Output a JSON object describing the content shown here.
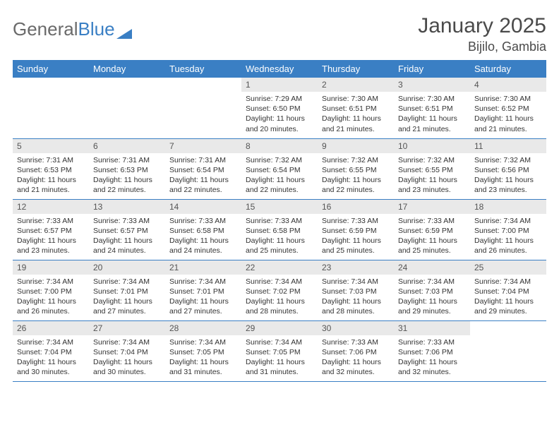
{
  "brand": {
    "part1": "General",
    "part2": "Blue"
  },
  "title": "January 2025",
  "location": "Bijilo, Gambia",
  "colors": {
    "header_bg": "#3a7fc4",
    "header_text": "#ffffff",
    "daynum_bg": "#e9e9e9",
    "text": "#333333",
    "rule": "#3a7fc4",
    "brand_gray": "#6a6a6a",
    "brand_blue": "#3a7fc4"
  },
  "dayNames": [
    "Sunday",
    "Monday",
    "Tuesday",
    "Wednesday",
    "Thursday",
    "Friday",
    "Saturday"
  ],
  "startWeekday": 3,
  "daysInMonth": 31,
  "days": {
    "1": {
      "sunrise": "7:29 AM",
      "sunset": "6:50 PM",
      "hrs": 11,
      "mins": 20
    },
    "2": {
      "sunrise": "7:30 AM",
      "sunset": "6:51 PM",
      "hrs": 11,
      "mins": 21
    },
    "3": {
      "sunrise": "7:30 AM",
      "sunset": "6:51 PM",
      "hrs": 11,
      "mins": 21
    },
    "4": {
      "sunrise": "7:30 AM",
      "sunset": "6:52 PM",
      "hrs": 11,
      "mins": 21
    },
    "5": {
      "sunrise": "7:31 AM",
      "sunset": "6:53 PM",
      "hrs": 11,
      "mins": 21
    },
    "6": {
      "sunrise": "7:31 AM",
      "sunset": "6:53 PM",
      "hrs": 11,
      "mins": 22
    },
    "7": {
      "sunrise": "7:31 AM",
      "sunset": "6:54 PM",
      "hrs": 11,
      "mins": 22
    },
    "8": {
      "sunrise": "7:32 AM",
      "sunset": "6:54 PM",
      "hrs": 11,
      "mins": 22
    },
    "9": {
      "sunrise": "7:32 AM",
      "sunset": "6:55 PM",
      "hrs": 11,
      "mins": 22
    },
    "10": {
      "sunrise": "7:32 AM",
      "sunset": "6:55 PM",
      "hrs": 11,
      "mins": 23
    },
    "11": {
      "sunrise": "7:32 AM",
      "sunset": "6:56 PM",
      "hrs": 11,
      "mins": 23
    },
    "12": {
      "sunrise": "7:33 AM",
      "sunset": "6:57 PM",
      "hrs": 11,
      "mins": 23
    },
    "13": {
      "sunrise": "7:33 AM",
      "sunset": "6:57 PM",
      "hrs": 11,
      "mins": 24
    },
    "14": {
      "sunrise": "7:33 AM",
      "sunset": "6:58 PM",
      "hrs": 11,
      "mins": 24
    },
    "15": {
      "sunrise": "7:33 AM",
      "sunset": "6:58 PM",
      "hrs": 11,
      "mins": 25
    },
    "16": {
      "sunrise": "7:33 AM",
      "sunset": "6:59 PM",
      "hrs": 11,
      "mins": 25
    },
    "17": {
      "sunrise": "7:33 AM",
      "sunset": "6:59 PM",
      "hrs": 11,
      "mins": 25
    },
    "18": {
      "sunrise": "7:34 AM",
      "sunset": "7:00 PM",
      "hrs": 11,
      "mins": 26
    },
    "19": {
      "sunrise": "7:34 AM",
      "sunset": "7:00 PM",
      "hrs": 11,
      "mins": 26
    },
    "20": {
      "sunrise": "7:34 AM",
      "sunset": "7:01 PM",
      "hrs": 11,
      "mins": 27
    },
    "21": {
      "sunrise": "7:34 AM",
      "sunset": "7:01 PM",
      "hrs": 11,
      "mins": 27
    },
    "22": {
      "sunrise": "7:34 AM",
      "sunset": "7:02 PM",
      "hrs": 11,
      "mins": 28
    },
    "23": {
      "sunrise": "7:34 AM",
      "sunset": "7:03 PM",
      "hrs": 11,
      "mins": 28
    },
    "24": {
      "sunrise": "7:34 AM",
      "sunset": "7:03 PM",
      "hrs": 11,
      "mins": 29
    },
    "25": {
      "sunrise": "7:34 AM",
      "sunset": "7:04 PM",
      "hrs": 11,
      "mins": 29
    },
    "26": {
      "sunrise": "7:34 AM",
      "sunset": "7:04 PM",
      "hrs": 11,
      "mins": 30
    },
    "27": {
      "sunrise": "7:34 AM",
      "sunset": "7:04 PM",
      "hrs": 11,
      "mins": 30
    },
    "28": {
      "sunrise": "7:34 AM",
      "sunset": "7:05 PM",
      "hrs": 11,
      "mins": 31
    },
    "29": {
      "sunrise": "7:34 AM",
      "sunset": "7:05 PM",
      "hrs": 11,
      "mins": 31
    },
    "30": {
      "sunrise": "7:33 AM",
      "sunset": "7:06 PM",
      "hrs": 11,
      "mins": 32
    },
    "31": {
      "sunrise": "7:33 AM",
      "sunset": "7:06 PM",
      "hrs": 11,
      "mins": 32
    }
  }
}
